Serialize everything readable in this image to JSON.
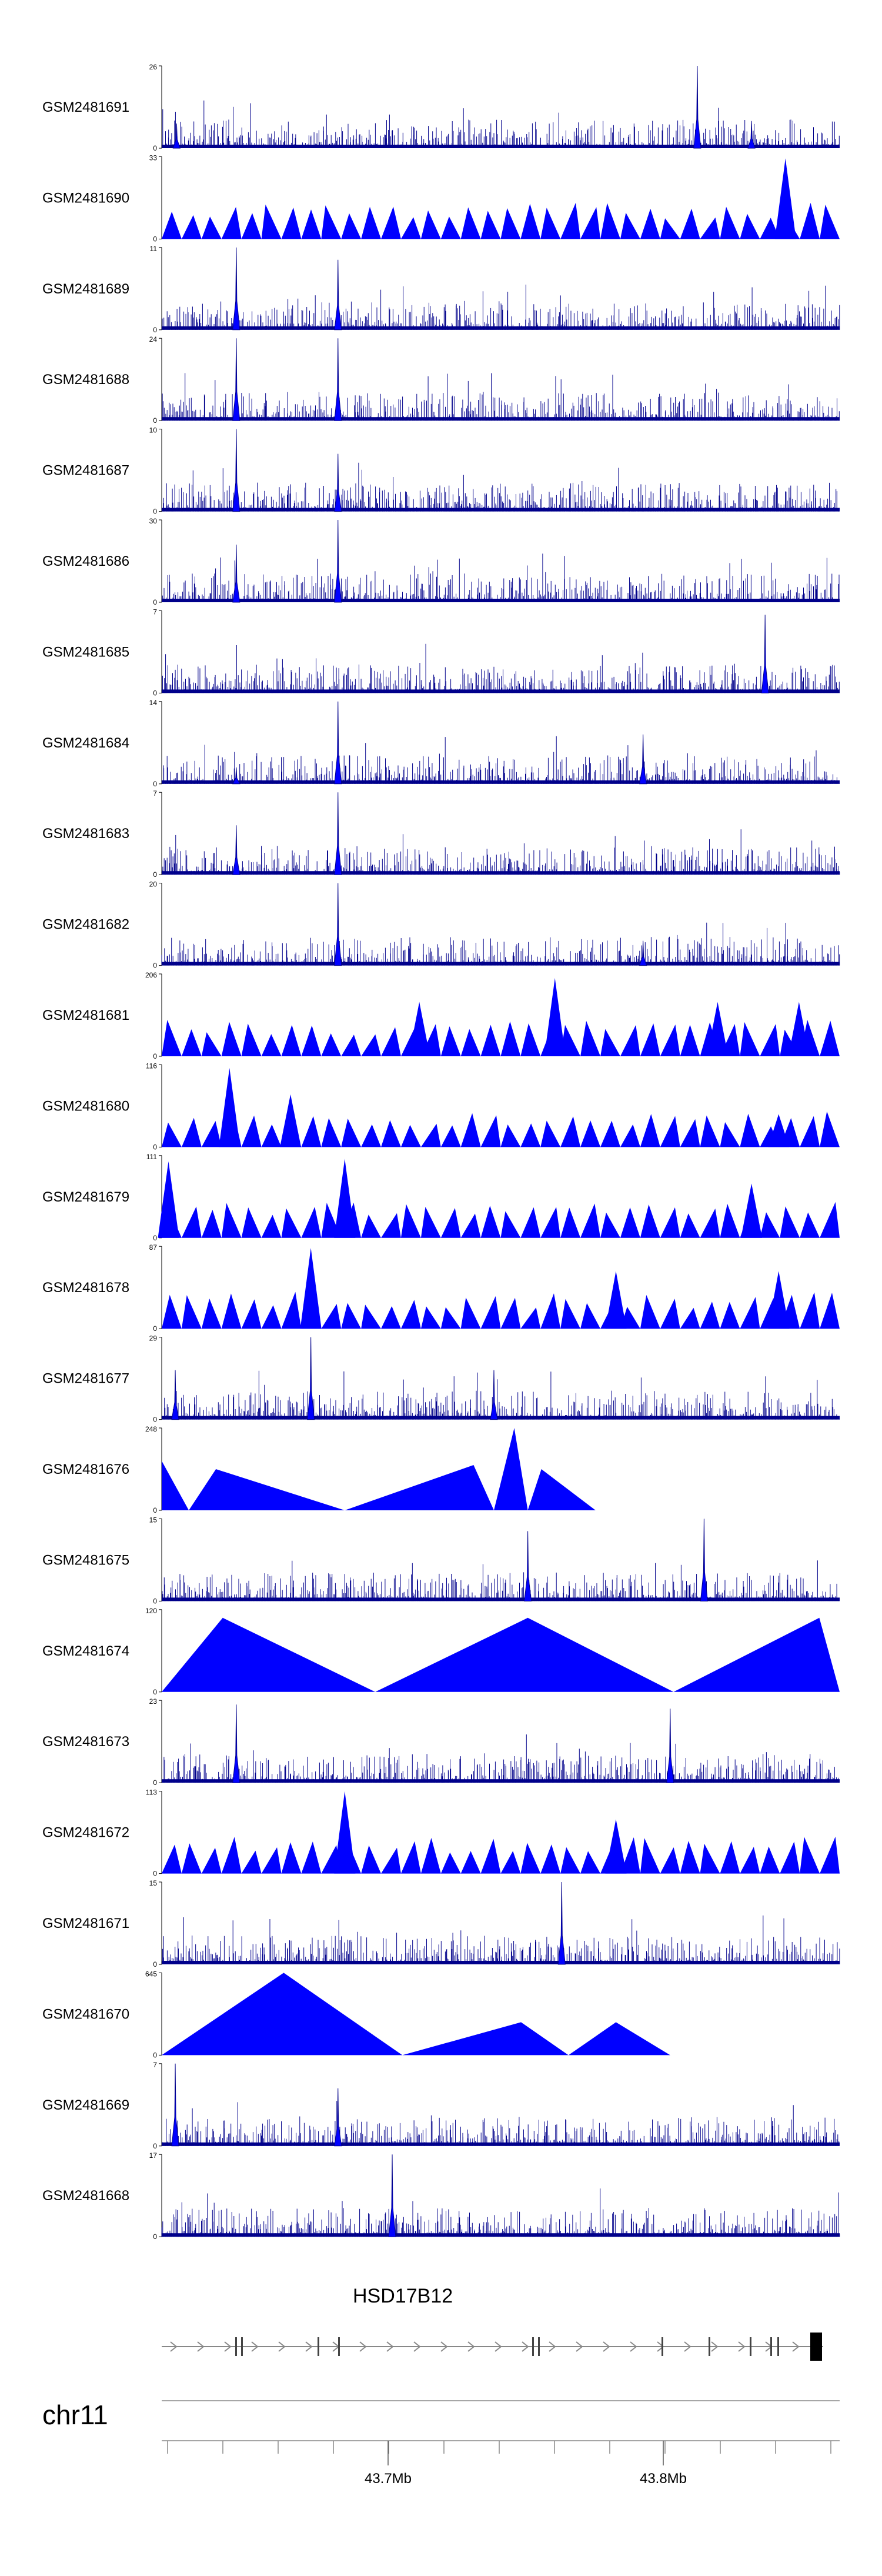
{
  "chart_data": {
    "type": "area",
    "chromosome": "chr11",
    "gene": {
      "name": "HSD17B12"
    },
    "x_axis": {
      "ticks": [
        {
          "value": 43.7,
          "label": "43.7Mb"
        },
        {
          "value": 43.8,
          "label": "43.8Mb"
        }
      ]
    },
    "tracks": [
      {
        "name": "GSM2481691",
        "ymax": 26,
        "peaks": [
          [
            0.022,
            0.3
          ],
          [
            0.79,
            1.0
          ],
          [
            0.87,
            0.33
          ]
        ],
        "style": "dense"
      },
      {
        "name": "GSM2481690",
        "ymax": 33,
        "peaks": [
          [
            0.92,
            0.98
          ]
        ],
        "style": "triangles"
      },
      {
        "name": "GSM2481689",
        "ymax": 11,
        "peaks": [
          [
            0.11,
            1.0
          ],
          [
            0.26,
            0.85
          ]
        ],
        "style": "dense"
      },
      {
        "name": "GSM2481688",
        "ymax": 24,
        "peaks": [
          [
            0.11,
            1.0
          ],
          [
            0.26,
            1.0
          ]
        ],
        "style": "dense"
      },
      {
        "name": "GSM2481687",
        "ymax": 10,
        "peaks": [
          [
            0.11,
            1.0
          ],
          [
            0.26,
            0.7
          ]
        ],
        "style": "dense"
      },
      {
        "name": "GSM2481686",
        "ymax": 30,
        "peaks": [
          [
            0.11,
            0.7
          ],
          [
            0.26,
            1.0
          ]
        ],
        "style": "dense"
      },
      {
        "name": "GSM2481685",
        "ymax": 7,
        "peaks": [
          [
            0.89,
            0.95
          ]
        ],
        "style": "dense"
      },
      {
        "name": "GSM2481684",
        "ymax": 14,
        "peaks": [
          [
            0.26,
            1.0
          ],
          [
            0.71,
            0.6
          ],
          [
            0.11,
            0.2
          ]
        ],
        "style": "dense"
      },
      {
        "name": "GSM2481683",
        "ymax": 7,
        "peaks": [
          [
            0.26,
            1.0
          ],
          [
            0.11,
            0.6
          ]
        ],
        "style": "dense"
      },
      {
        "name": "GSM2481682",
        "ymax": 20,
        "peaks": [
          [
            0.26,
            1.0
          ],
          [
            0.71,
            0.3
          ]
        ],
        "style": "dense"
      },
      {
        "name": "GSM2481681",
        "ymax": 206,
        "peaks": [
          [
            0.38,
            0.66
          ],
          [
            0.58,
            0.95
          ],
          [
            0.82,
            0.66
          ],
          [
            0.94,
            0.66
          ]
        ],
        "style": "triangles"
      },
      {
        "name": "GSM2481680",
        "ymax": 116,
        "peaks": [
          [
            0.1,
            0.96
          ],
          [
            0.19,
            0.64
          ],
          [
            0.91,
            0.4
          ]
        ],
        "style": "triangles"
      },
      {
        "name": "GSM2481679",
        "ymax": 111,
        "peaks": [
          [
            0.01,
            0.93
          ],
          [
            0.27,
            0.96
          ],
          [
            0.87,
            0.66
          ]
        ],
        "style": "triangles"
      },
      {
        "name": "GSM2481678",
        "ymax": 87,
        "peaks": [
          [
            0.22,
            0.98
          ],
          [
            0.67,
            0.7
          ],
          [
            0.91,
            0.7
          ]
        ],
        "style": "triangles"
      },
      {
        "name": "GSM2481677",
        "ymax": 29,
        "peaks": [
          [
            0.22,
            1.0
          ],
          [
            0.49,
            0.6
          ],
          [
            0.02,
            0.6
          ]
        ],
        "style": "dense"
      },
      {
        "name": "GSM2481676",
        "ymax": 248,
        "peaks": [
          [
            0.0,
            0.6
          ],
          [
            0.08,
            0.5
          ],
          [
            0.46,
            0.55
          ],
          [
            0.52,
            1.0
          ],
          [
            0.56,
            0.5
          ]
        ],
        "style": "broad"
      },
      {
        "name": "GSM2481675",
        "ymax": 15,
        "peaks": [
          [
            0.8,
            1.0
          ],
          [
            0.54,
            0.85
          ]
        ],
        "style": "dense"
      },
      {
        "name": "GSM2481674",
        "ymax": 120,
        "peaks": [
          [
            0.09,
            0.9
          ],
          [
            0.54,
            0.9
          ],
          [
            0.97,
            0.9
          ]
        ],
        "style": "broad"
      },
      {
        "name": "GSM2481673",
        "ymax": 23,
        "peaks": [
          [
            0.75,
            0.9
          ],
          [
            0.11,
            0.95
          ]
        ],
        "style": "dense"
      },
      {
        "name": "GSM2481672",
        "ymax": 113,
        "peaks": [
          [
            0.27,
            1.0
          ],
          [
            0.67,
            0.66
          ]
        ],
        "style": "triangles"
      },
      {
        "name": "GSM2481671",
        "ymax": 15,
        "peaks": [
          [
            0.59,
            1.0
          ]
        ],
        "style": "dense"
      },
      {
        "name": "GSM2481670",
        "ymax": 645,
        "peaks": [
          [
            0.18,
            1.0
          ],
          [
            0.53,
            0.4
          ],
          [
            0.67,
            0.4
          ]
        ],
        "style": "broad"
      },
      {
        "name": "GSM2481669",
        "ymax": 7,
        "peaks": [
          [
            0.02,
            1.0
          ],
          [
            0.26,
            0.7
          ]
        ],
        "style": "dense"
      },
      {
        "name": "GSM2481668",
        "ymax": 17,
        "peaks": [
          [
            0.34,
            1.0
          ]
        ],
        "style": "dense"
      }
    ]
  }
}
